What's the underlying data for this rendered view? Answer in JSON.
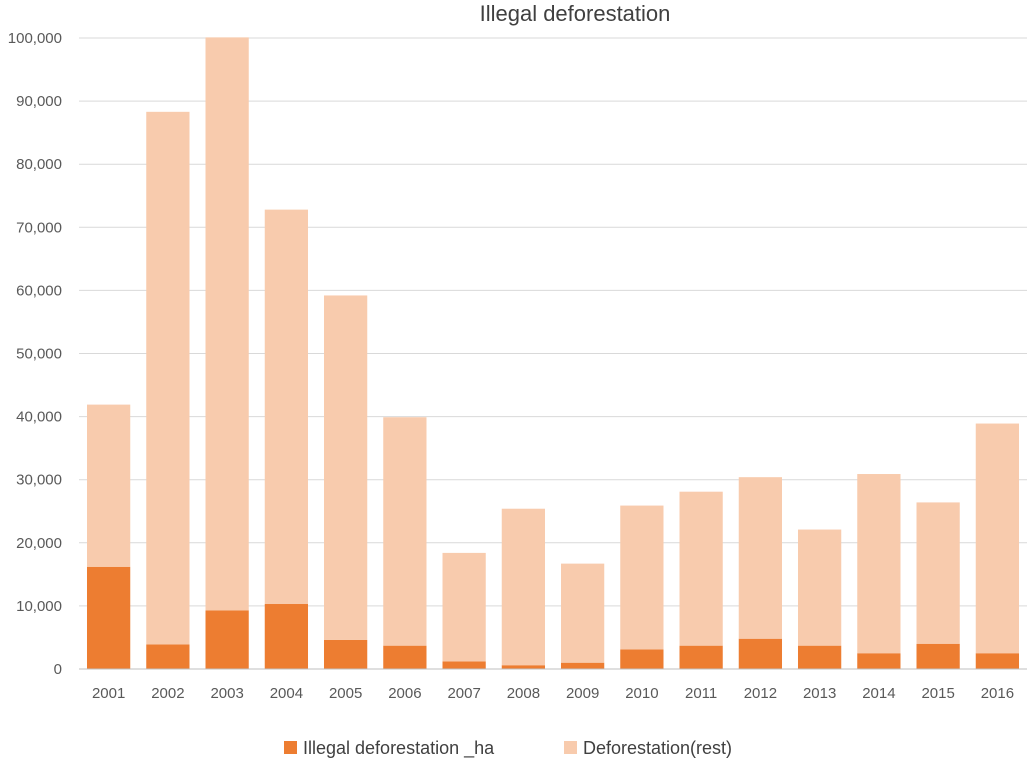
{
  "chart_data": {
    "type": "bar",
    "stacked": true,
    "title": "Illegal deforestation",
    "categories": [
      "2001",
      "2002",
      "2003",
      "2004",
      "2005",
      "2006",
      "2007",
      "2008",
      "2009",
      "2010",
      "2011",
      "2012",
      "2013",
      "2014",
      "2015",
      "2016"
    ],
    "series": [
      {
        "name": "Illegal deforestation _ha",
        "color": "#ed7d31",
        "values": [
          16200,
          3900,
          9300,
          10300,
          4600,
          3700,
          1200,
          600,
          1000,
          3100,
          3700,
          4800,
          3700,
          2500,
          4000,
          2500
        ]
      },
      {
        "name": "Deforestation(rest)",
        "color": "#f8cbad",
        "values": [
          25700,
          84400,
          90800,
          62500,
          54600,
          36200,
          17200,
          24800,
          15700,
          22800,
          24400,
          25600,
          18400,
          28400,
          22400,
          36400
        ]
      }
    ],
    "ylim": [
      0,
      100000
    ],
    "yticks": [
      "0",
      "10,000",
      "20,000",
      "30,000",
      "40,000",
      "50,000",
      "60,000",
      "70,000",
      "80,000",
      "90,000",
      "100,000"
    ],
    "grid": true,
    "legend_position": "bottom"
  }
}
